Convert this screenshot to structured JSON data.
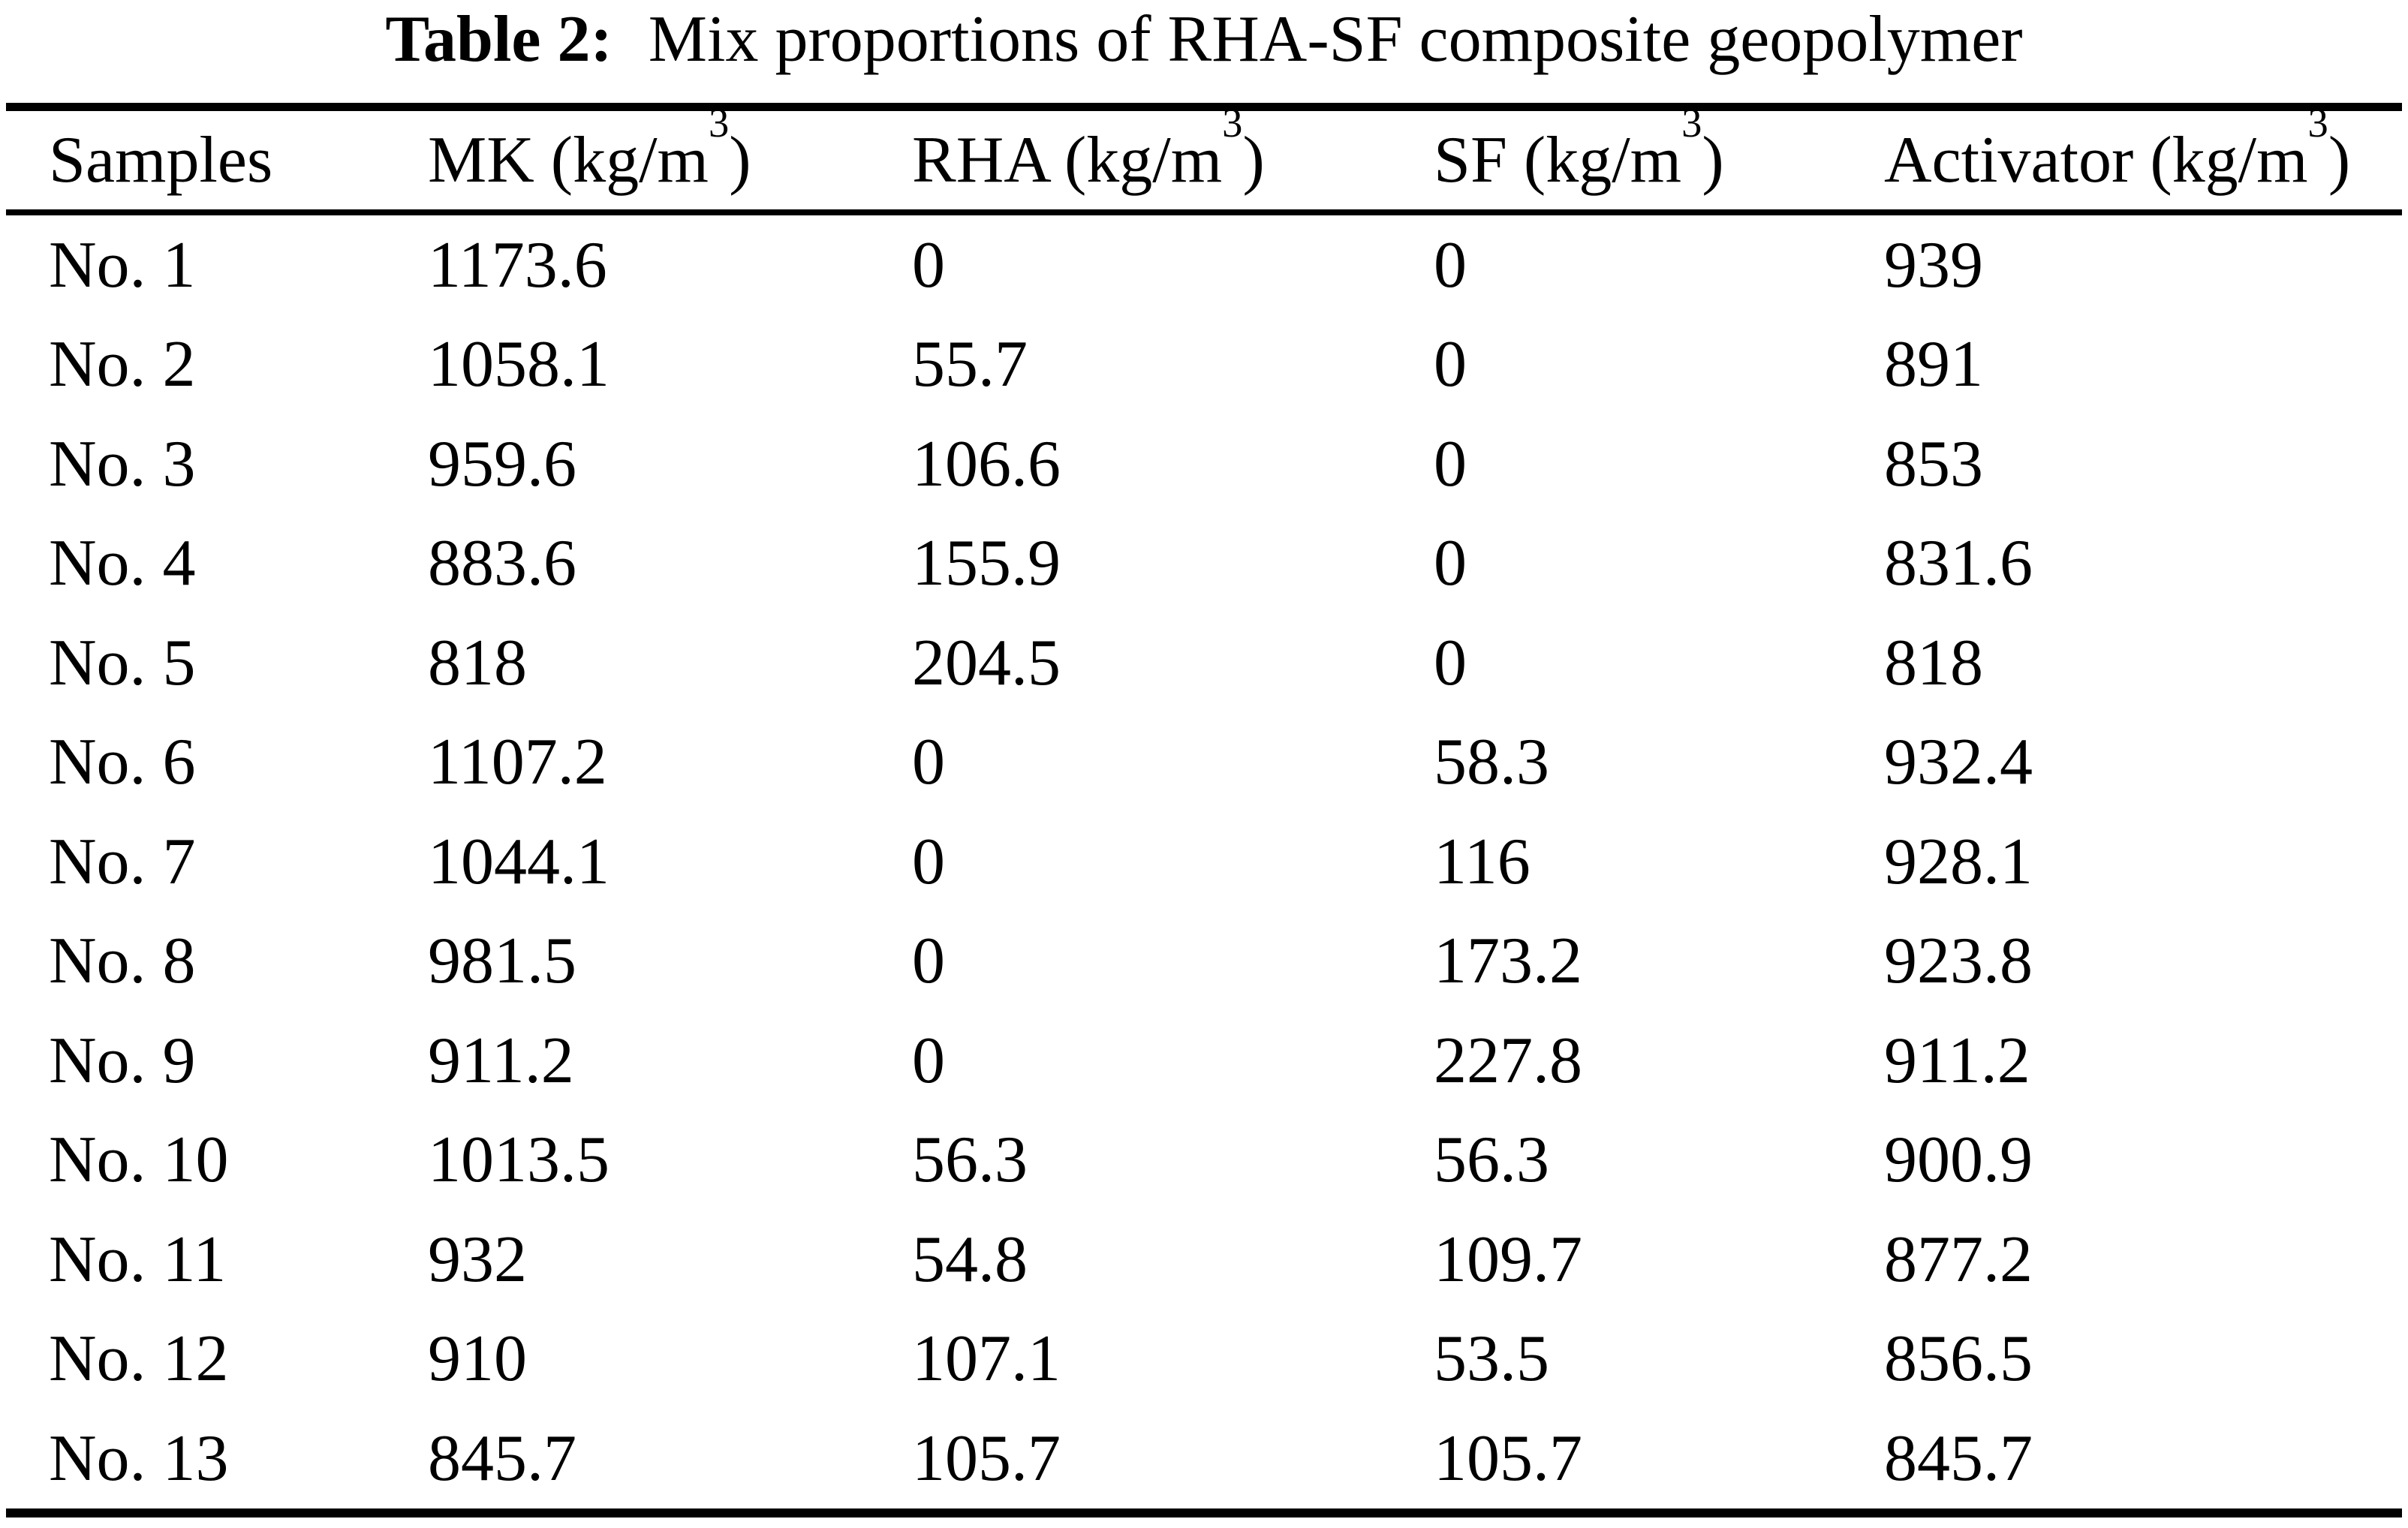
{
  "title": {
    "label": "Table 2:",
    "text": "Mix proportions of RHA-SF composite geopolymer"
  },
  "table": {
    "columns": [
      {
        "label": "Samples",
        "unit": null,
        "exponent": null
      },
      {
        "label": "MK",
        "unit": "kg/m",
        "exponent": "3"
      },
      {
        "label": "RHA",
        "unit": "kg/m",
        "exponent": "3"
      },
      {
        "label": "SF",
        "unit": "kg/m",
        "exponent": "3"
      },
      {
        "label": "Activator",
        "unit": "kg/m",
        "exponent": "3"
      }
    ],
    "rows": [
      [
        "No. 1",
        "1173.6",
        "0",
        "0",
        "939"
      ],
      [
        "No. 2",
        "1058.1",
        "55.7",
        "0",
        "891"
      ],
      [
        "No. 3",
        "959.6",
        "106.6",
        "0",
        "853"
      ],
      [
        "No. 4",
        "883.6",
        "155.9",
        "0",
        "831.6"
      ],
      [
        "No. 5",
        "818",
        "204.5",
        "0",
        "818"
      ],
      [
        "No. 6",
        "1107.2",
        "0",
        "58.3",
        "932.4"
      ],
      [
        "No. 7",
        "1044.1",
        "0",
        "116",
        "928.1"
      ],
      [
        "No. 8",
        "981.5",
        "0",
        "173.2",
        "923.8"
      ],
      [
        "No. 9",
        "911.2",
        "0",
        "227.8",
        "911.2"
      ],
      [
        "No. 10",
        "1013.5",
        "56.3",
        "56.3",
        "900.9"
      ],
      [
        "No. 11",
        "932",
        "54.8",
        "109.7",
        "877.2"
      ],
      [
        "No. 12",
        "910",
        "107.1",
        "53.5",
        "856.5"
      ],
      [
        "No. 13",
        "845.7",
        "105.7",
        "105.7",
        "845.7"
      ]
    ]
  }
}
